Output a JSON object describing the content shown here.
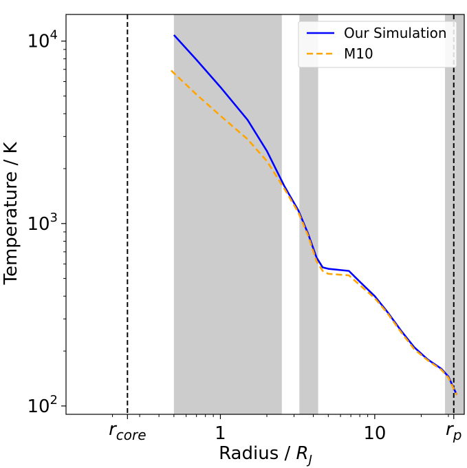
{
  "chart_data": {
    "type": "line",
    "title": "",
    "xlabel": "Radius / ",
    "xlabel_symbol": "R",
    "xlabel_subscript": "J",
    "ylabel": "Temperature / K",
    "xscale": "log",
    "yscale": "log",
    "xlim": [
      0.1,
      38
    ],
    "ylim": [
      90,
      14000
    ],
    "x_ticks": [
      {
        "value": 1,
        "label": "1"
      },
      {
        "value": 10,
        "label": "10"
      }
    ],
    "x_special_ticks": [
      {
        "value": 0.25,
        "symbol": "r",
        "subscript": "core"
      },
      {
        "value": 32.5,
        "symbol": "r",
        "subscript": "p"
      }
    ],
    "y_ticks": [
      {
        "value": 100,
        "base": "10",
        "exp": "2"
      },
      {
        "value": 1000,
        "base": "10",
        "exp": "3"
      },
      {
        "value": 10000,
        "base": "10",
        "exp": "4"
      }
    ],
    "vlines": [
      0.25,
      32.5
    ],
    "shaded_regions": [
      [
        0.5,
        2.5
      ],
      [
        3.25,
        4.3
      ],
      [
        28.5,
        38
      ]
    ],
    "legend_position": "top-right",
    "colors": {
      "Our Simulation": "#0000ff",
      "M10": "#ffa500",
      "shade": "#cccccc"
    },
    "series": [
      {
        "name": "Our Simulation",
        "style": "solid",
        "x": [
          0.5,
          0.7,
          1.0,
          1.5,
          2.0,
          2.6,
          3.2,
          3.7,
          4.2,
          4.6,
          5.0,
          6.8,
          8.0,
          10.0,
          12.0,
          15.0,
          18.0,
          22.0,
          27.0,
          30.0,
          32.5,
          34.0
        ],
        "y": [
          10800,
          7900,
          5600,
          3700,
          2500,
          1600,
          1180,
          880,
          650,
          575,
          565,
          550,
          480,
          400,
          330,
          255,
          210,
          180,
          160,
          145,
          125,
          115
        ]
      },
      {
        "name": "M10",
        "style": "dashed",
        "x": [
          0.48,
          0.7,
          1.0,
          1.5,
          2.0,
          2.6,
          3.2,
          3.7,
          4.2,
          4.6,
          5.0,
          6.8,
          8.0,
          10.0,
          12.0,
          15.0,
          18.0,
          22.0,
          27.0,
          30.0,
          32.5,
          34.0
        ],
        "y": [
          6900,
          5100,
          3900,
          2900,
          2200,
          1550,
          1150,
          860,
          620,
          550,
          530,
          520,
          460,
          390,
          325,
          250,
          205,
          178,
          158,
          143,
          124,
          115
        ]
      }
    ]
  }
}
